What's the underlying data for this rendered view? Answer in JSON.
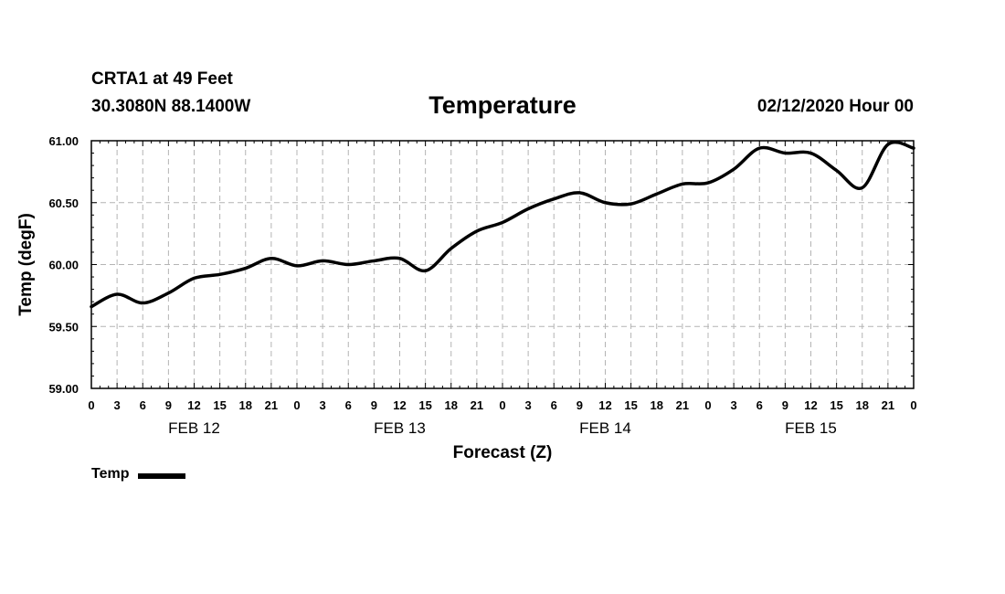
{
  "header": {
    "station": "CRTA1 at 49 Feet",
    "coords": "30.3080N 88.1400W",
    "run_time": "02/12/2020 Hour 00"
  },
  "chart_data": {
    "type": "line",
    "title": "Temperature",
    "xlabel": "Forecast (Z)",
    "ylabel": "Temp (degF)",
    "ylim": [
      59.0,
      61.0
    ],
    "xlim": [
      0,
      96
    ],
    "yticks": [
      "59.00",
      "59.50",
      "60.00",
      "60.50",
      "61.00"
    ],
    "xtick_labels": [
      "0",
      "3",
      "6",
      "9",
      "12",
      "15",
      "18",
      "21",
      "0",
      "3",
      "6",
      "9",
      "12",
      "15",
      "18",
      "21",
      "0",
      "3",
      "6",
      "9",
      "12",
      "15",
      "18",
      "21",
      "0",
      "3",
      "6",
      "9",
      "12",
      "15",
      "18",
      "21",
      "0"
    ],
    "day_labels": [
      "FEB 12",
      "FEB 13",
      "FEB 14",
      "FEB 15"
    ],
    "grid": true,
    "legend_position": "bottom-left",
    "series": [
      {
        "name": "Temp",
        "color": "#000000",
        "x": [
          0,
          3,
          6,
          9,
          12,
          15,
          18,
          21,
          24,
          27,
          30,
          33,
          36,
          39,
          42,
          45,
          48,
          51,
          54,
          57,
          60,
          63,
          66,
          69,
          72,
          75,
          78,
          81,
          84,
          87,
          90,
          93,
          96
        ],
        "values": [
          59.66,
          59.76,
          59.69,
          59.77,
          59.89,
          59.92,
          59.97,
          60.05,
          59.99,
          60.03,
          60.0,
          60.03,
          60.05,
          59.95,
          60.13,
          60.27,
          60.34,
          60.45,
          60.53,
          60.58,
          60.5,
          60.49,
          60.57,
          60.65,
          60.66,
          60.77,
          60.94,
          60.9,
          60.9,
          60.76,
          60.62,
          60.97,
          60.94
        ]
      }
    ]
  },
  "legend": {
    "label": "Temp"
  }
}
